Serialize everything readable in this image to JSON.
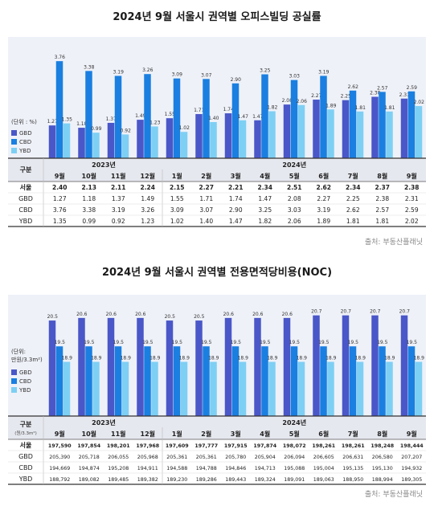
{
  "chart_data": [
    {
      "type": "bar",
      "title": "2024년 9월 서울시 권역별 오피스빌딩 공실률",
      "unit_label": "(단위 : %)",
      "months": [
        "9월",
        "10월",
        "11월",
        "12월",
        "1월",
        "2월",
        "3월",
        "4월",
        "5월",
        "6월",
        "7월",
        "8월",
        "9월"
      ],
      "years": [
        {
          "label": "2023년",
          "start": 0,
          "end": 3
        },
        {
          "label": "2024년",
          "start": 4,
          "end": 12
        }
      ],
      "header_label": "구분",
      "series": [
        {
          "name": "GBD",
          "color": "#4a57c8",
          "values": [
            1.27,
            1.18,
            1.37,
            1.49,
            1.55,
            1.71,
            1.74,
            1.47,
            2.08,
            2.27,
            2.25,
            2.38,
            2.31
          ]
        },
        {
          "name": "CBD",
          "color": "#1a7fe0",
          "values": [
            3.76,
            3.38,
            3.19,
            3.26,
            3.09,
            3.07,
            2.9,
            3.25,
            3.03,
            3.19,
            2.62,
            2.57,
            2.59
          ]
        },
        {
          "name": "YBD",
          "color": "#7ecff4",
          "values": [
            1.35,
            0.99,
            0.92,
            1.23,
            1.02,
            1.4,
            1.47,
            1.82,
            2.06,
            1.89,
            1.81,
            1.81,
            2.02
          ]
        }
      ],
      "ylim": [
        0,
        4.2
      ],
      "table": [
        {
          "label": "서울",
          "bold": true,
          "cells": [
            "2.40",
            "2.13",
            "2.11",
            "2.24",
            "2.15",
            "2.27",
            "2.21",
            "2.34",
            "2.51",
            "2.62",
            "2.34",
            "2.37",
            "2.38"
          ]
        },
        {
          "label": "GBD",
          "bold": false,
          "cells": [
            "1.27",
            "1.18",
            "1.37",
            "1.49",
            "1.55",
            "1.71",
            "1.74",
            "1.47",
            "2.08",
            "2.27",
            "2.25",
            "2.38",
            "2.31"
          ]
        },
        {
          "label": "CBD",
          "bold": false,
          "cells": [
            "3.76",
            "3.38",
            "3.19",
            "3.26",
            "3.09",
            "3.07",
            "2.90",
            "3.25",
            "3.03",
            "3.19",
            "2.62",
            "2.57",
            "2.59"
          ]
        },
        {
          "label": "YBD",
          "bold": false,
          "cells": [
            "1.35",
            "0.99",
            "0.92",
            "1.23",
            "1.02",
            "1.40",
            "1.47",
            "1.82",
            "2.06",
            "1.89",
            "1.81",
            "1.81",
            "2.02"
          ]
        }
      ],
      "source": "출처: 부동산플래닛"
    },
    {
      "type": "bar",
      "title": "2024년 9월 서울시 권역별 전용면적당비용(NOC)",
      "unit_label": [
        "(단위:",
        "만원/3.3m²)"
      ],
      "months": [
        "9월",
        "10월",
        "11월",
        "12월",
        "1월",
        "2월",
        "3월",
        "4월",
        "5월",
        "6월",
        "7월",
        "8월",
        "9월"
      ],
      "years": [
        {
          "label": "2023년",
          "start": 0,
          "end": 3
        },
        {
          "label": "2024년",
          "start": 4,
          "end": 12
        }
      ],
      "header_label": "구분",
      "header_sub": "(원/3.3m²)",
      "series": [
        {
          "name": "GBD",
          "color": "#4a57c8",
          "values": [
            20.5,
            20.6,
            20.6,
            20.6,
            20.5,
            20.5,
            20.6,
            20.6,
            20.6,
            20.7,
            20.7,
            20.7,
            20.7
          ]
        },
        {
          "name": "CBD",
          "color": "#1a7fe0",
          "values": [
            19.5,
            19.5,
            19.5,
            19.5,
            19.5,
            19.5,
            19.5,
            19.5,
            19.5,
            19.5,
            19.5,
            19.5,
            19.5
          ]
        },
        {
          "name": "YBD",
          "color": "#7ecff4",
          "values": [
            18.9,
            18.9,
            18.9,
            18.9,
            18.9,
            18.9,
            18.9,
            18.9,
            18.9,
            18.9,
            18.9,
            18.9,
            18.9
          ]
        }
      ],
      "ylim": [
        16.8,
        21.0
      ],
      "table": [
        {
          "label": "서울",
          "bold": true,
          "cells": [
            "197,590",
            "197,854",
            "198,201",
            "197,968",
            "197,609",
            "197,777",
            "197,915",
            "197,874",
            "198,072",
            "198,261",
            "198,261",
            "198,248",
            "198,444"
          ]
        },
        {
          "label": "GBD",
          "bold": false,
          "cells": [
            "205,390",
            "205,718",
            "206,055",
            "205,968",
            "205,361",
            "205,361",
            "205,780",
            "205,904",
            "206,094",
            "206,605",
            "206,631",
            "206,580",
            "207,207"
          ]
        },
        {
          "label": "CBD",
          "bold": false,
          "cells": [
            "194,669",
            "194,874",
            "195,208",
            "194,911",
            "194,588",
            "194,788",
            "194,846",
            "194,713",
            "195,088",
            "195,004",
            "195,135",
            "195,130",
            "194,932"
          ]
        },
        {
          "label": "YBD",
          "bold": false,
          "cells": [
            "188,792",
            "189,082",
            "189,485",
            "189,382",
            "189,230",
            "189,286",
            "189,443",
            "189,324",
            "189,091",
            "189,063",
            "188,950",
            "188,994",
            "189,305"
          ]
        }
      ],
      "source": "출처: 부동산플래닛"
    }
  ]
}
